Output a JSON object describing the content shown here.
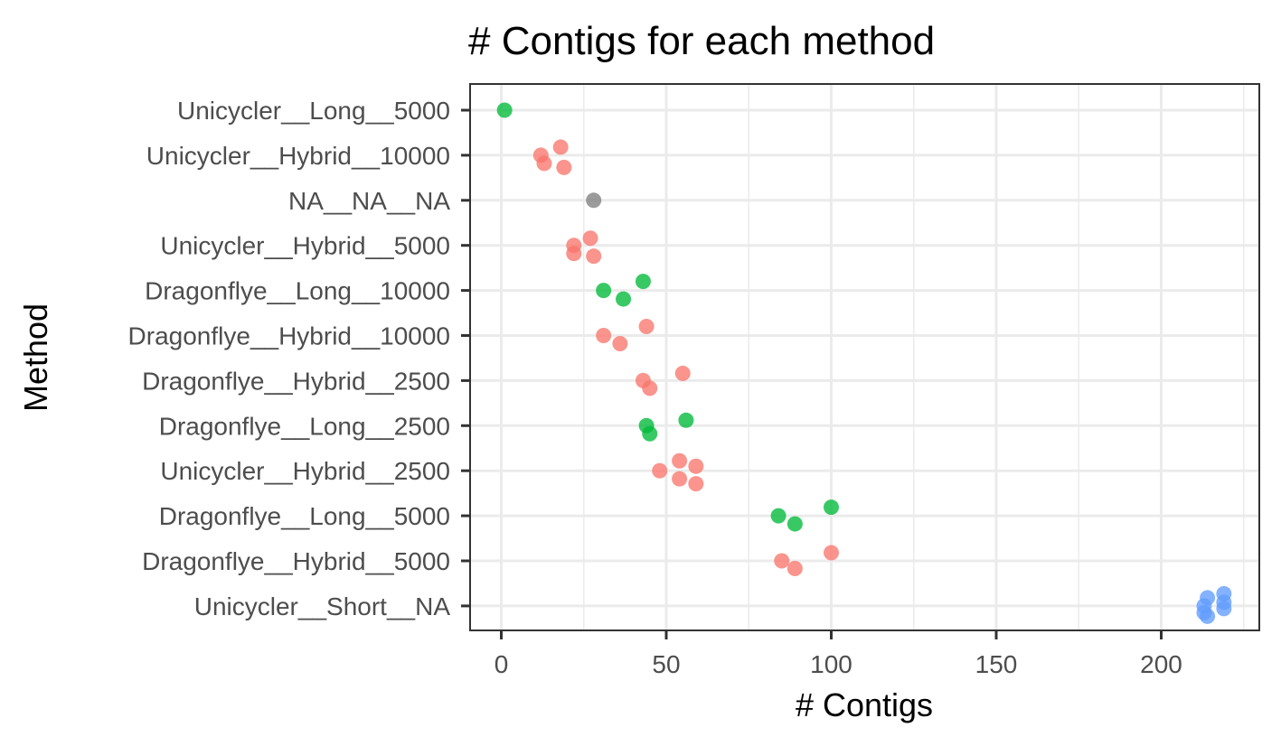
{
  "chart_data": {
    "type": "scatter",
    "title": "# Contigs for each method",
    "xlabel": "# Contigs",
    "ylabel": "Method",
    "xlim": [
      -9,
      230
    ],
    "x_ticks": [
      0,
      50,
      100,
      150,
      200
    ],
    "x_tick_labels": [
      "0",
      "50",
      "100",
      "150",
      "200"
    ],
    "x_minor_ticks": [
      25,
      75,
      125,
      175,
      225
    ],
    "grid": true,
    "legend": "none",
    "categories": [
      "Unicycler__Long__5000",
      "Unicycler__Hybrid__10000",
      "NA__NA__NA",
      "Unicycler__Hybrid__5000",
      "Dragonflye__Long__10000",
      "Dragonflye__Hybrid__10000",
      "Dragonflye__Hybrid__2500",
      "Dragonflye__Long__2500",
      "Unicycler__Hybrid__2500",
      "Dragonflye__Long__5000",
      "Dragonflye__Hybrid__5000",
      "Unicycler__Short__NA"
    ],
    "colors": {
      "Hybrid": "#F8766D",
      "Long": "#00BA38",
      "Short": "#619CFF",
      "NA": "#7F7F7F"
    },
    "series": [
      {
        "group": "Hybrid",
        "points": [
          {
            "category": "Unicycler__Hybrid__10000",
            "x": 18,
            "jitter": -0.18
          },
          {
            "category": "Unicycler__Hybrid__10000",
            "x": 12,
            "jitter": 0.0
          },
          {
            "category": "Unicycler__Hybrid__10000",
            "x": 13,
            "jitter": 0.18
          },
          {
            "category": "Unicycler__Hybrid__10000",
            "x": 19,
            "jitter": 0.27
          },
          {
            "category": "Unicycler__Hybrid__5000",
            "x": 27,
            "jitter": -0.16
          },
          {
            "category": "Unicycler__Hybrid__5000",
            "x": 22,
            "jitter": 0.0
          },
          {
            "category": "Unicycler__Hybrid__5000",
            "x": 22,
            "jitter": 0.18
          },
          {
            "category": "Unicycler__Hybrid__5000",
            "x": 28,
            "jitter": 0.24
          },
          {
            "category": "Dragonflye__Hybrid__10000",
            "x": 44,
            "jitter": -0.2
          },
          {
            "category": "Dragonflye__Hybrid__10000",
            "x": 31,
            "jitter": 0.0
          },
          {
            "category": "Dragonflye__Hybrid__10000",
            "x": 36,
            "jitter": 0.18
          },
          {
            "category": "Dragonflye__Hybrid__2500",
            "x": 55,
            "jitter": -0.16
          },
          {
            "category": "Dragonflye__Hybrid__2500",
            "x": 43,
            "jitter": 0.0
          },
          {
            "category": "Dragonflye__Hybrid__2500",
            "x": 45,
            "jitter": 0.17
          },
          {
            "category": "Unicycler__Hybrid__2500",
            "x": 54,
            "jitter": -0.22
          },
          {
            "category": "Unicycler__Hybrid__2500",
            "x": 59,
            "jitter": -0.1
          },
          {
            "category": "Unicycler__Hybrid__2500",
            "x": 48,
            "jitter": 0.0
          },
          {
            "category": "Unicycler__Hybrid__2500",
            "x": 54,
            "jitter": 0.18
          },
          {
            "category": "Unicycler__Hybrid__2500",
            "x": 59,
            "jitter": 0.29
          },
          {
            "category": "Dragonflye__Hybrid__5000",
            "x": 100,
            "jitter": -0.18
          },
          {
            "category": "Dragonflye__Hybrid__5000",
            "x": 85,
            "jitter": 0.0
          },
          {
            "category": "Dragonflye__Hybrid__5000",
            "x": 89,
            "jitter": 0.17
          }
        ]
      },
      {
        "group": "Long",
        "points": [
          {
            "category": "Unicycler__Long__5000",
            "x": 1,
            "jitter": 0.0
          },
          {
            "category": "Dragonflye__Long__10000",
            "x": 43,
            "jitter": -0.2
          },
          {
            "category": "Dragonflye__Long__10000",
            "x": 31,
            "jitter": 0.0
          },
          {
            "category": "Dragonflye__Long__10000",
            "x": 37,
            "jitter": 0.19
          },
          {
            "category": "Dragonflye__Long__2500",
            "x": 56,
            "jitter": -0.12
          },
          {
            "category": "Dragonflye__Long__2500",
            "x": 44,
            "jitter": 0.0
          },
          {
            "category": "Dragonflye__Long__2500",
            "x": 45,
            "jitter": 0.18
          },
          {
            "category": "Dragonflye__Long__5000",
            "x": 100,
            "jitter": -0.19
          },
          {
            "category": "Dragonflye__Long__5000",
            "x": 84,
            "jitter": 0.0
          },
          {
            "category": "Dragonflye__Long__5000",
            "x": 89,
            "jitter": 0.18
          }
        ]
      },
      {
        "group": "Short",
        "points": [
          {
            "category": "Unicycler__Short__NA",
            "x": 219,
            "jitter": -0.27
          },
          {
            "category": "Unicycler__Short__NA",
            "x": 214,
            "jitter": -0.18
          },
          {
            "category": "Unicycler__Short__NA",
            "x": 219,
            "jitter": -0.08
          },
          {
            "category": "Unicycler__Short__NA",
            "x": 213,
            "jitter": 0.0
          },
          {
            "category": "Unicycler__Short__NA",
            "x": 219,
            "jitter": 0.06
          },
          {
            "category": "Unicycler__Short__NA",
            "x": 213,
            "jitter": 0.15
          },
          {
            "category": "Unicycler__Short__NA",
            "x": 214,
            "jitter": 0.23
          }
        ]
      },
      {
        "group": "NA",
        "points": [
          {
            "category": "NA__NA__NA",
            "x": 28,
            "jitter": 0.0
          }
        ]
      }
    ]
  }
}
